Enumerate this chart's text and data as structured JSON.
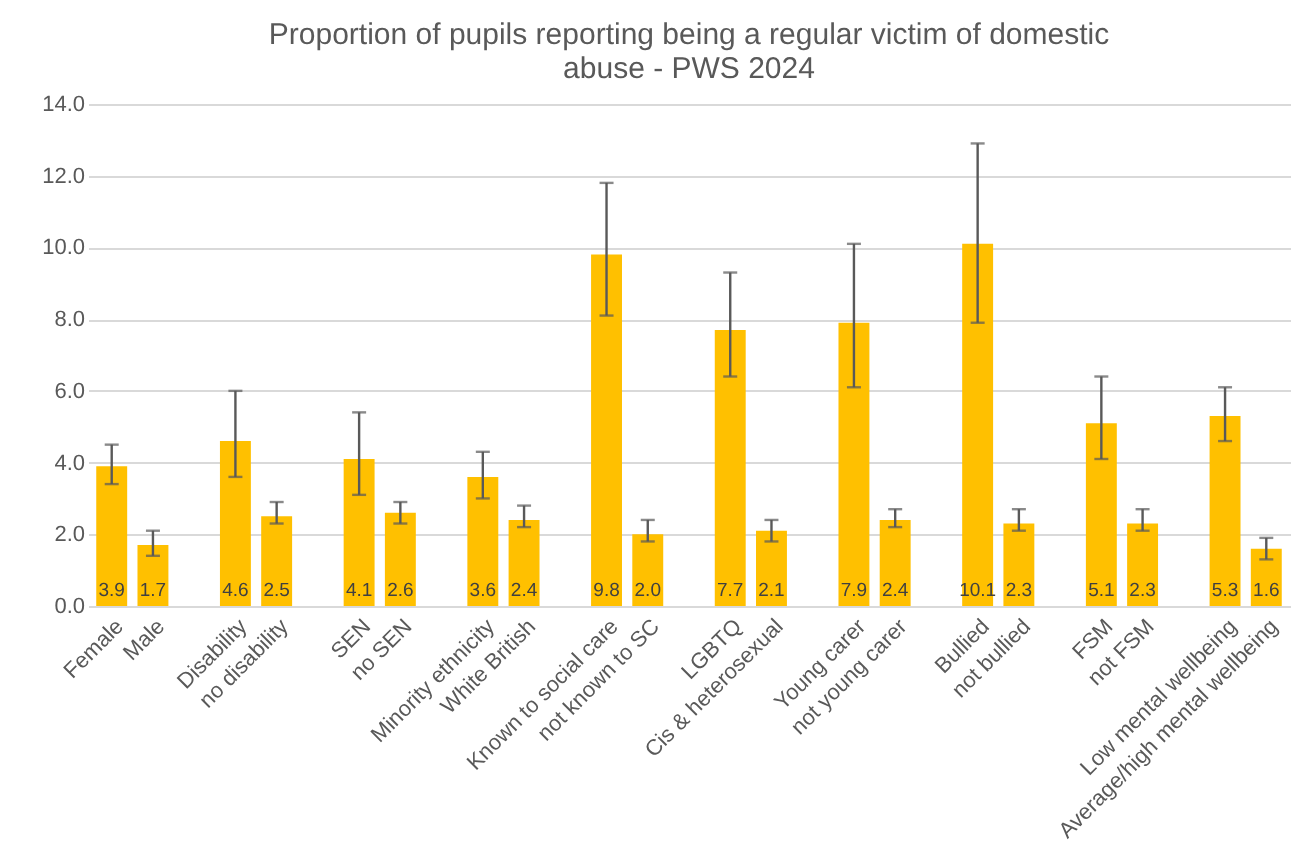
{
  "chart_data": {
    "type": "bar",
    "title": "Proportion of pupils reporting being a regular victim of domestic abuse - PWS 2024",
    "categories": [
      "Female",
      "Male",
      null,
      "Disability",
      "no disability",
      null,
      "SEN",
      "no SEN",
      null,
      "Minority ethnicity",
      "White British",
      null,
      "Known to social care",
      "not known to SC",
      null,
      "LGBTQ",
      "Cis & heterosexual",
      null,
      "Young carer",
      "not young carer",
      null,
      "Bullied",
      "not bullied",
      null,
      "FSM",
      "not FSM",
      null,
      "Low mental wellbeing",
      "Average/high mental wellbeing"
    ],
    "values": [
      3.9,
      1.7,
      null,
      4.6,
      2.5,
      null,
      4.1,
      2.6,
      null,
      3.6,
      2.4,
      null,
      9.8,
      2.0,
      null,
      7.7,
      2.1,
      null,
      7.9,
      2.4,
      null,
      10.1,
      2.3,
      null,
      5.1,
      2.3,
      null,
      5.3,
      1.6
    ],
    "errors": [
      [
        3.4,
        4.5
      ],
      [
        1.4,
        2.1
      ],
      null,
      [
        3.6,
        6.0
      ],
      [
        2.3,
        2.9
      ],
      null,
      [
        3.1,
        5.4
      ],
      [
        2.3,
        2.9
      ],
      null,
      [
        3.0,
        4.3
      ],
      [
        2.2,
        2.8
      ],
      null,
      [
        8.1,
        11.8
      ],
      [
        1.8,
        2.4
      ],
      null,
      [
        6.4,
        9.3
      ],
      [
        1.8,
        2.4
      ],
      null,
      [
        6.1,
        10.1
      ],
      [
        2.2,
        2.7
      ],
      null,
      [
        7.9,
        12.9
      ],
      [
        2.1,
        2.7
      ],
      null,
      [
        4.1,
        6.4
      ],
      [
        2.1,
        2.7
      ],
      null,
      [
        4.6,
        6.1
      ],
      [
        1.3,
        1.9
      ]
    ],
    "color": "#ffc000",
    "ylim": [
      0,
      14
    ],
    "yticks": [
      {
        "value": 0,
        "label": "0.0"
      },
      {
        "value": 2,
        "label": "2.0"
      },
      {
        "value": 4,
        "label": "4.0"
      },
      {
        "value": 6,
        "label": "6.0"
      },
      {
        "value": 8,
        "label": "8.0"
      },
      {
        "value": 10,
        "label": "10.0"
      },
      {
        "value": 12,
        "label": "12.0"
      },
      {
        "value": 14,
        "label": "14.0"
      }
    ],
    "grid": "y",
    "value_labels": [
      "3.9",
      "1.7",
      null,
      "4.6",
      "2.5",
      null,
      "4.1",
      "2.6",
      null,
      "3.6",
      "2.4",
      null,
      "9.8",
      "2.0",
      null,
      "7.7",
      "2.1",
      null,
      "7.9",
      "2.4",
      null,
      "10.1",
      "2.3",
      null,
      "5.1",
      "2.3",
      null,
      "5.3",
      "1.6"
    ]
  }
}
